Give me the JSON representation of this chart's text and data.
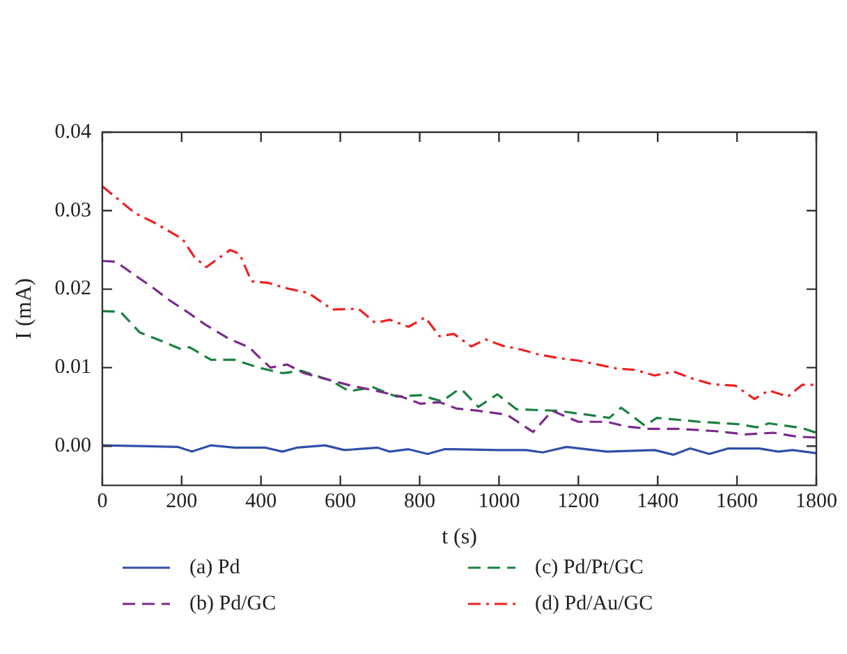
{
  "chart_data": {
    "type": "line",
    "xlabel": "t (s)",
    "ylabel": "I (mA)",
    "xlim": [
      0,
      1800
    ],
    "xticks": [
      0,
      200,
      400,
      600,
      800,
      1000,
      1200,
      1400,
      1600,
      1800
    ],
    "ylim": [
      -0.005,
      0.04
    ],
    "yticks": [
      {
        "value": 0,
        "label": "0.00"
      },
      {
        "value": 0.01,
        "label": "0.01"
      },
      {
        "value": 0.02,
        "label": "0.02"
      },
      {
        "value": 0.03,
        "label": "0.03"
      },
      {
        "value": 0.04,
        "label": "0.04"
      }
    ],
    "grid": false,
    "legend": "bottom",
    "marker": "none",
    "series": [
      {
        "name": "(a) Pd",
        "color": "#3050a8",
        "line_style": "solid",
        "x": [
          0,
          94,
          190,
          226,
          274,
          334,
          412,
          454,
          490,
          562,
          610,
          694,
          724,
          772,
          820,
          862,
          882,
          996,
          1068,
          1110,
          1170,
          1272,
          1392,
          1440,
          1482,
          1530,
          1578,
          1656,
          1704,
          1740,
          1800
        ],
        "values": [
          0.0001,
          0.0,
          -0.0001,
          -0.0007,
          0.0001,
          -0.0002,
          -0.0002,
          -0.0007,
          -0.0002,
          0.0001,
          -0.0005,
          -0.0002,
          -0.0007,
          -0.0004,
          -0.001,
          -0.0004,
          -0.0004,
          -0.0005,
          -0.0005,
          -0.0008,
          -0.0001,
          -0.0007,
          -0.0005,
          -0.0011,
          -0.0003,
          -0.001,
          -0.0003,
          -0.0003,
          -0.0007,
          -0.0005,
          -0.0009
        ]
      },
      {
        "name": "(b) Pd/GC",
        "color": "#7b2a8c",
        "line_style": "dashed",
        "x": [
          0,
          34,
          70,
          130,
          166,
          214,
          262,
          322,
          370,
          394,
          424,
          466,
          508,
          574,
          628,
          694,
          754,
          802,
          850,
          892,
          948,
          1020,
          1086,
          1134,
          1200,
          1272,
          1320,
          1380,
          1452,
          1548,
          1620,
          1692,
          1752,
          1800
        ],
        "values": [
          0.0236,
          0.0235,
          0.0222,
          0.0201,
          0.0187,
          0.0171,
          0.0154,
          0.0136,
          0.0126,
          0.0114,
          0.01,
          0.0104,
          0.0093,
          0.0084,
          0.0077,
          0.007,
          0.0063,
          0.0054,
          0.0056,
          0.0048,
          0.0045,
          0.004,
          0.0018,
          0.0045,
          0.0031,
          0.0031,
          0.0025,
          0.0022,
          0.0022,
          0.0019,
          0.0015,
          0.0017,
          0.0012,
          0.0011
        ]
      },
      {
        "name": "(c) Pd/Pt/GC",
        "color": "#1a8040",
        "line_style": "dashed",
        "x": [
          0,
          46,
          94,
          154,
          196,
          220,
          274,
          334,
          394,
          454,
          502,
          574,
          622,
          682,
          742,
          802,
          856,
          892,
          906,
          948,
          996,
          1044,
          1146,
          1224,
          1278,
          1308,
          1368,
          1398,
          1506,
          1602,
          1650,
          1680,
          1764,
          1800
        ],
        "values": [
          0.0172,
          0.0171,
          0.0145,
          0.0133,
          0.0124,
          0.0126,
          0.011,
          0.011,
          0.01,
          0.0093,
          0.0096,
          0.0084,
          0.007,
          0.0075,
          0.0063,
          0.0065,
          0.0057,
          0.007,
          0.0072,
          0.005,
          0.0066,
          0.0047,
          0.0045,
          0.004,
          0.0036,
          0.0049,
          0.0026,
          0.0036,
          0.0031,
          0.0028,
          0.0024,
          0.0029,
          0.0023,
          0.0017
        ]
      },
      {
        "name": "(d) Pd/Au/GC",
        "color": "#f02020",
        "line_style": "dashdot",
        "x": [
          0,
          82,
          130,
          202,
          232,
          262,
          322,
          346,
          376,
          418,
          466,
          520,
          580,
          646,
          688,
          724,
          772,
          814,
          850,
          886,
          930,
          966,
          1008,
          1056,
          1098,
          1152,
          1200,
          1248,
          1296,
          1344,
          1392,
          1440,
          1488,
          1536,
          1596,
          1644,
          1680,
          1728,
          1764,
          1800
        ],
        "values": [
          0.0331,
          0.0297,
          0.0285,
          0.0264,
          0.0241,
          0.0228,
          0.025,
          0.0245,
          0.021,
          0.0208,
          0.0201,
          0.0195,
          0.0174,
          0.0175,
          0.0157,
          0.0161,
          0.0152,
          0.0164,
          0.014,
          0.0143,
          0.0127,
          0.0136,
          0.0128,
          0.0123,
          0.0117,
          0.0112,
          0.0109,
          0.0104,
          0.0099,
          0.0097,
          0.009,
          0.0095,
          0.0086,
          0.0079,
          0.0077,
          0.006,
          0.0071,
          0.0063,
          0.0078,
          0.0078
        ]
      }
    ]
  }
}
